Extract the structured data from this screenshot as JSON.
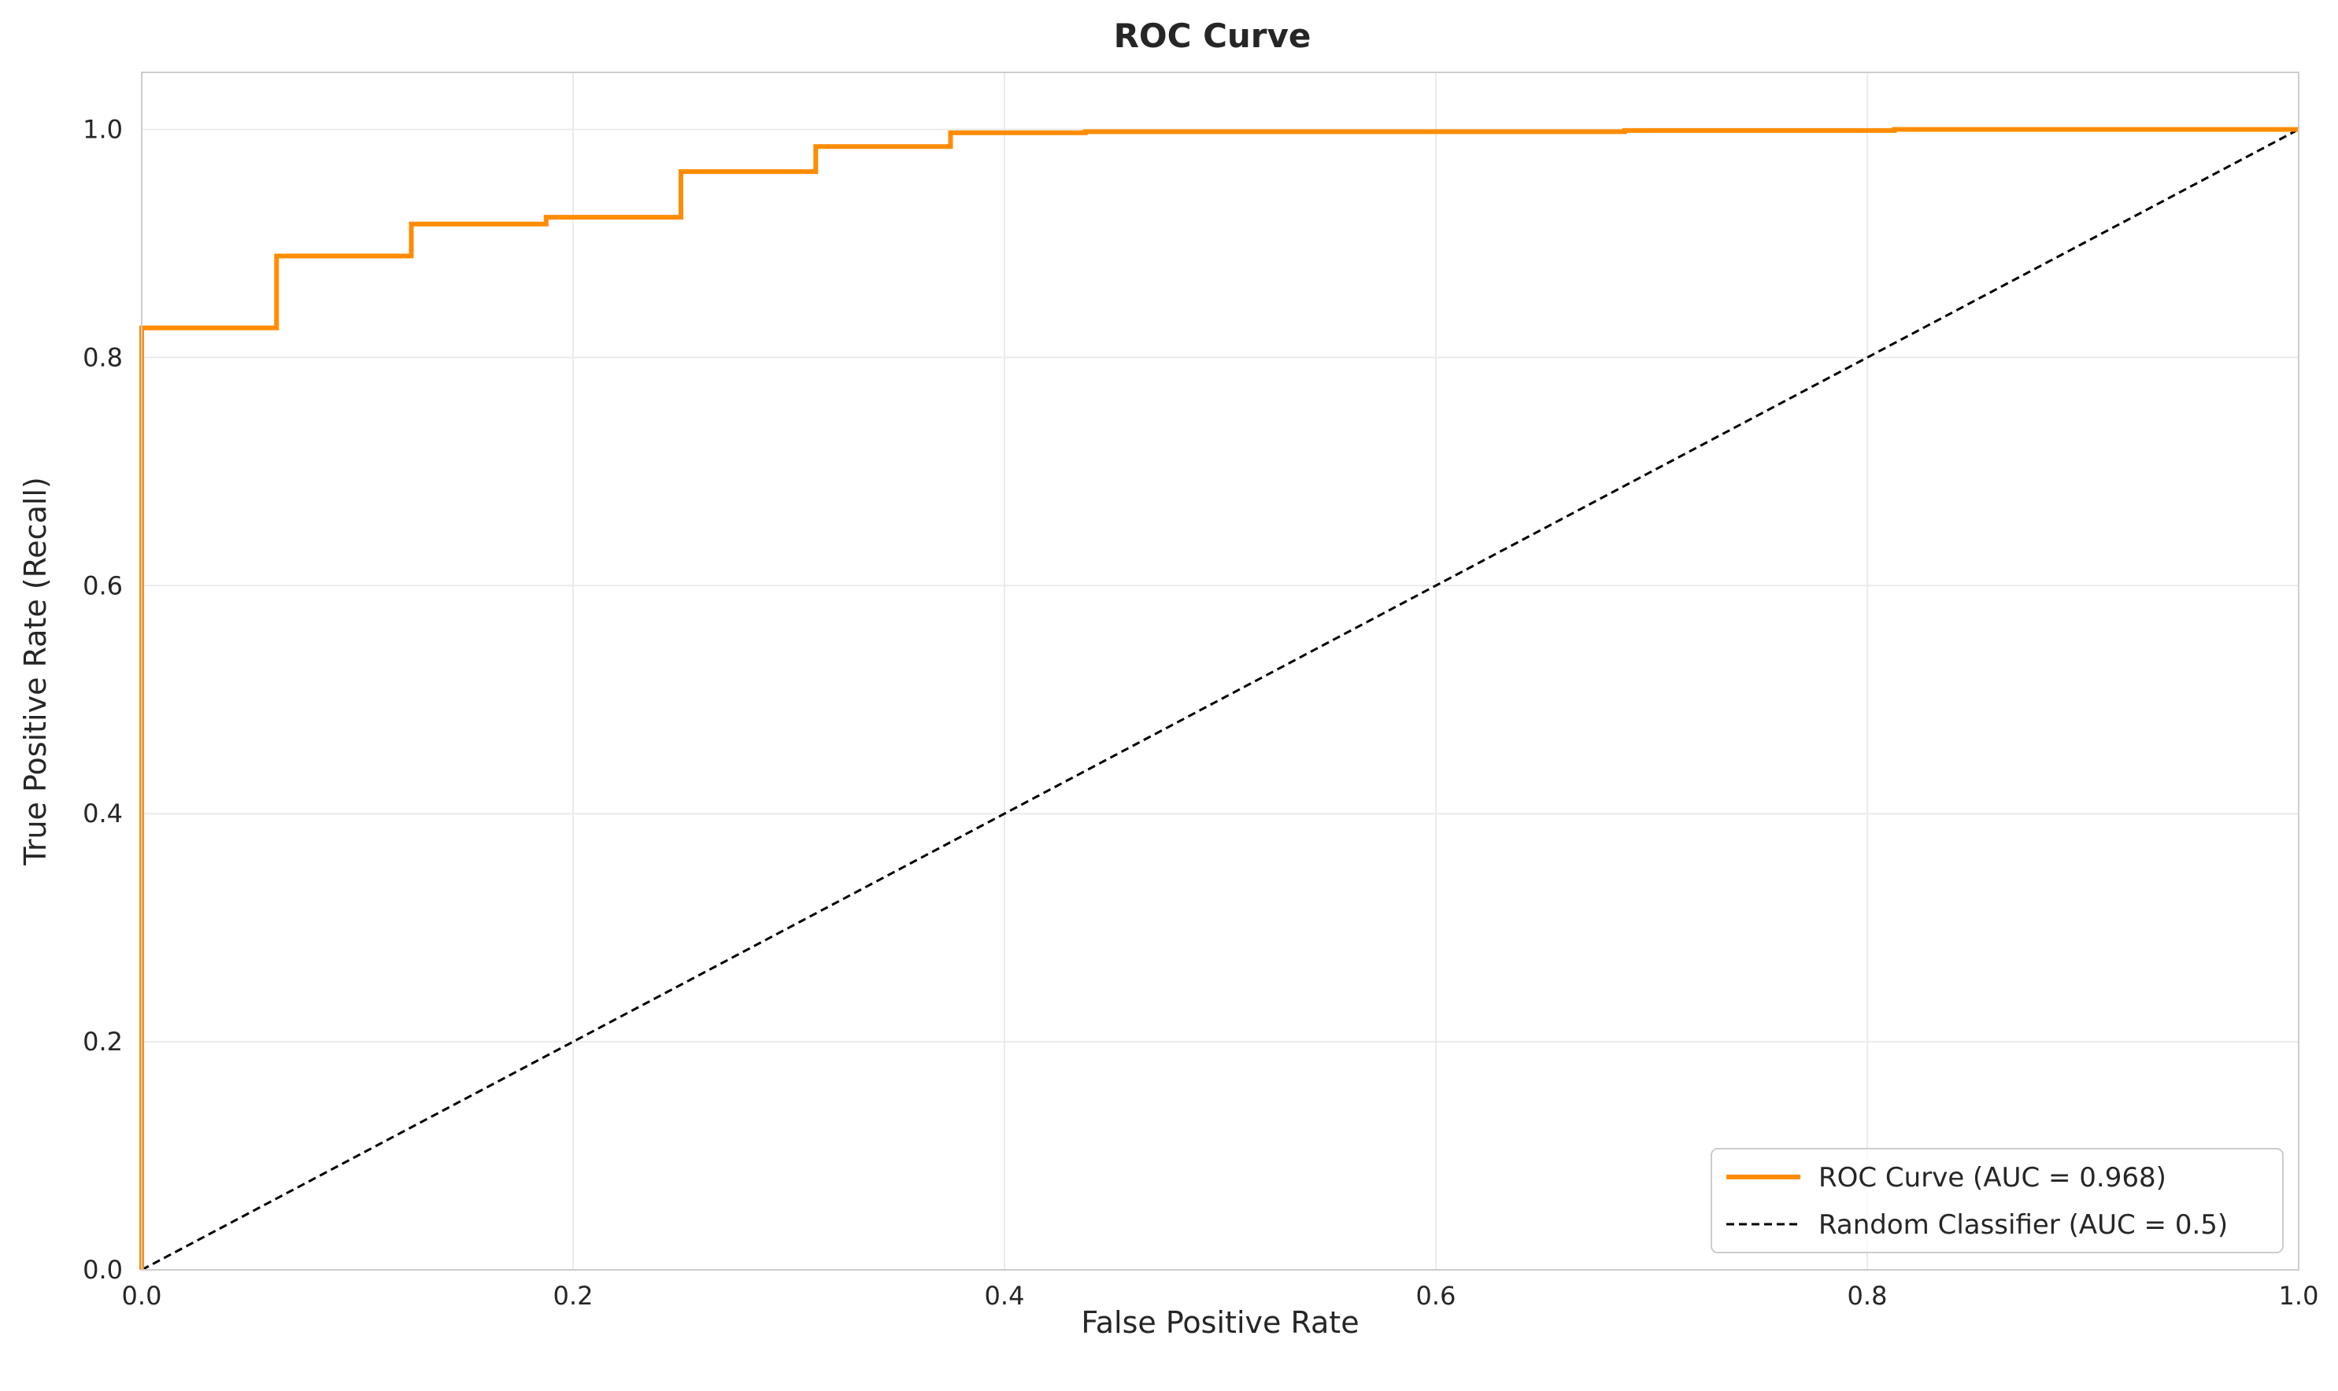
{
  "chart_data": {
    "type": "line",
    "title": "ROC Curve",
    "xlabel": "False Positive Rate",
    "ylabel": "True Positive Rate (Recall)",
    "xlim": [
      0,
      1
    ],
    "ylim": [
      0,
      1.05
    ],
    "xticks": [
      0.0,
      0.2,
      0.4,
      0.6,
      0.8,
      1.0
    ],
    "yticks": [
      0.0,
      0.2,
      0.4,
      0.6,
      0.8,
      1.0
    ],
    "xtick_labels": [
      "0.0",
      "0.2",
      "0.4",
      "0.6",
      "0.8",
      "1.0"
    ],
    "ytick_labels": [
      "0.0",
      "0.2",
      "0.4",
      "0.6",
      "0.8",
      "1.0"
    ],
    "grid": true,
    "legend_position": "bottom-right",
    "series": [
      {
        "name": "ROC Curve (AUC = 0.968)",
        "color": "#ff8c00",
        "style": "solid",
        "x": [
          0,
          0,
          0.0625,
          0.0625,
          0.125,
          0.125,
          0.1875,
          0.1875,
          0.25,
          0.25,
          0.3125,
          0.3125,
          0.375,
          0.375,
          0.4375,
          0.4375,
          0.6875,
          0.6875,
          0.8125,
          0.8125,
          1.0
        ],
        "y": [
          0,
          0.826,
          0.826,
          0.889,
          0.889,
          0.917,
          0.917,
          0.923,
          0.923,
          0.963,
          0.963,
          0.985,
          0.985,
          0.997,
          0.997,
          0.998,
          0.998,
          0.999,
          0.999,
          1.0,
          1.0
        ]
      },
      {
        "name": "Random Classifier (AUC = 0.5)",
        "color": "#000000",
        "style": "dashed",
        "x": [
          0,
          1
        ],
        "y": [
          0,
          1
        ]
      }
    ]
  }
}
